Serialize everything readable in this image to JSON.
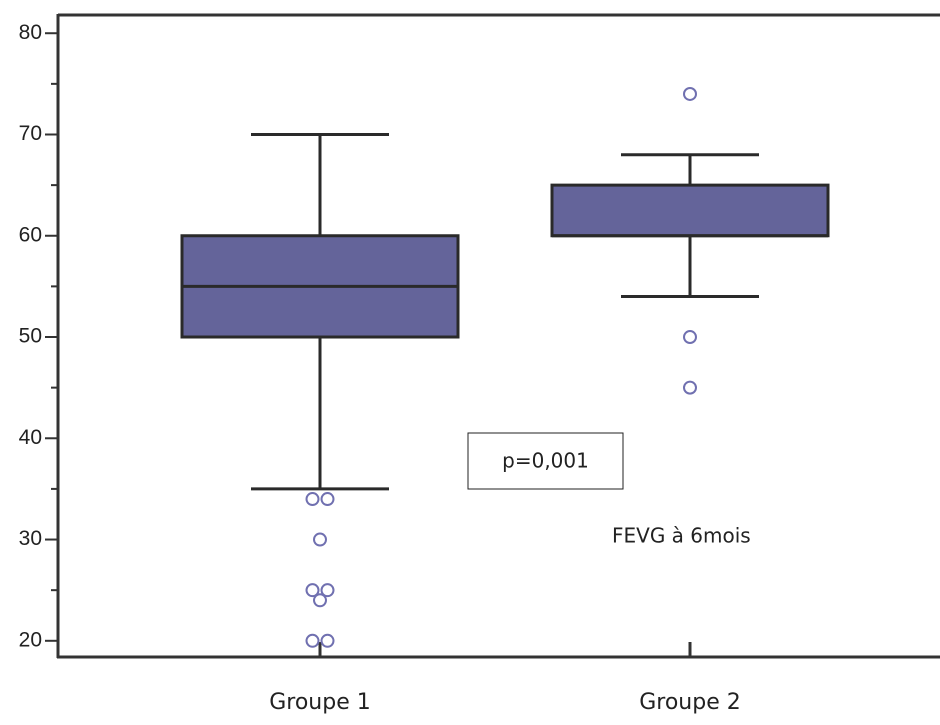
{
  "chart_data": {
    "type": "box",
    "categories": [
      "Groupe 1",
      "Groupe 2"
    ],
    "boxes": [
      {
        "whisker_low": 35,
        "q1": 50,
        "median": 55,
        "q3": 60,
        "whisker_high": 70,
        "outliers": [
          34,
          34,
          30,
          25,
          25,
          24,
          20,
          20
        ]
      },
      {
        "whisker_low": 54,
        "q1": 60,
        "median": 60,
        "q3": 65,
        "whisker_high": 68,
        "outliers": [
          74,
          50,
          45
        ]
      }
    ],
    "color": "#64649a",
    "ylim": [
      18.4,
      81.8
    ],
    "yticks": [
      20,
      30,
      40,
      50,
      60,
      70,
      80
    ],
    "yticks_minor": [
      25,
      35,
      45,
      55,
      65,
      75
    ],
    "annotations": [
      "p=0,001",
      "FEVG à 6mois"
    ]
  }
}
